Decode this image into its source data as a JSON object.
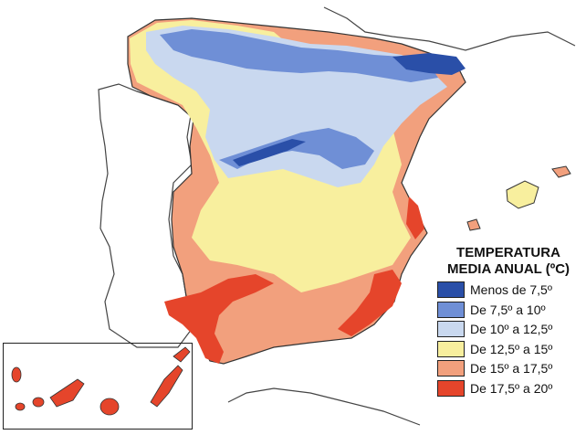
{
  "legend": {
    "title_line1": "TEMPERATURA",
    "title_line2": "MEDIA ANUAL (ºC)",
    "items": [
      {
        "label": "Menos de 7,5º",
        "color": "#2a4fa8"
      },
      {
        "label": "De 7,5º a 10º",
        "color": "#6f8fd6"
      },
      {
        "label": "De 10º a 12,5º",
        "color": "#c9d8ef"
      },
      {
        "label": "De 12,5º a 15º",
        "color": "#f8ef9e"
      },
      {
        "label": "De 15º a 17,5º",
        "color": "#f2a07d"
      },
      {
        "label": "De 17,5º a 20º",
        "color": "#e5452b"
      }
    ]
  },
  "colors": {
    "outline": "#333333",
    "neighbor_fill": "#ffffff"
  }
}
